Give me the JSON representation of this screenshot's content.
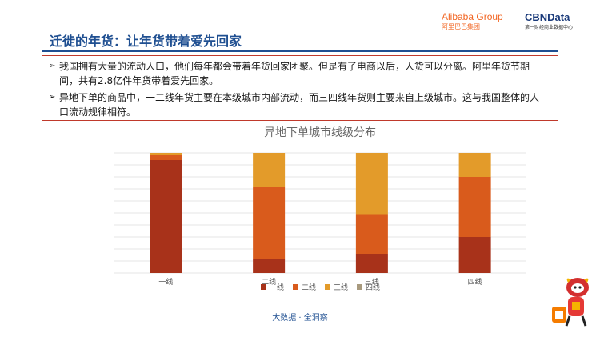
{
  "header": {
    "title": "迁徙的年货：让年货带着爱先回家",
    "logo_alibaba": "Alibaba Group",
    "logo_alibaba_sub": "阿里巴巴集团",
    "logo_cbn": "CBNData",
    "logo_cbn_sub": "第一财经商业数据中心"
  },
  "bullets": [
    {
      "text": "我国拥有大量的流动人口，他们每年都会带着年货回家团聚。但是有了电商以后，人货可以分离。阿里年货节期间，共有2.8亿件年货带着爱先回家。"
    },
    {
      "text": "异地下单的商品中，一二线年货主要在本级城市内部流动，而三四线年货则主要来自上级城市。这与我国整体的人口流动规律相符。"
    }
  ],
  "footer": "大数据 · 全洞察",
  "colors": {
    "title": "#1f4f91",
    "box_border": "#c0392b"
  },
  "chart_data": {
    "type": "bar",
    "stacked": true,
    "title": "异地下单城市线级分布",
    "categories": [
      "一线",
      "二线",
      "三线",
      "四线"
    ],
    "series": [
      {
        "name": "一线",
        "color": "#a8321a",
        "values": [
          0.94,
          0.12,
          0.16,
          0.3
        ]
      },
      {
        "name": "二线",
        "color": "#d95b1c",
        "values": [
          0.04,
          0.6,
          0.33,
          0.5
        ]
      },
      {
        "name": "三线",
        "color": "#e39b2a",
        "values": [
          0.02,
          0.28,
          0.51,
          0.2
        ]
      },
      {
        "name": "四线",
        "color": "#a89a7e",
        "values": [
          0.0,
          0.0,
          0.0,
          0.0
        ]
      }
    ],
    "ylim": [
      0,
      1
    ],
    "grid": true,
    "legend": "bottom"
  }
}
